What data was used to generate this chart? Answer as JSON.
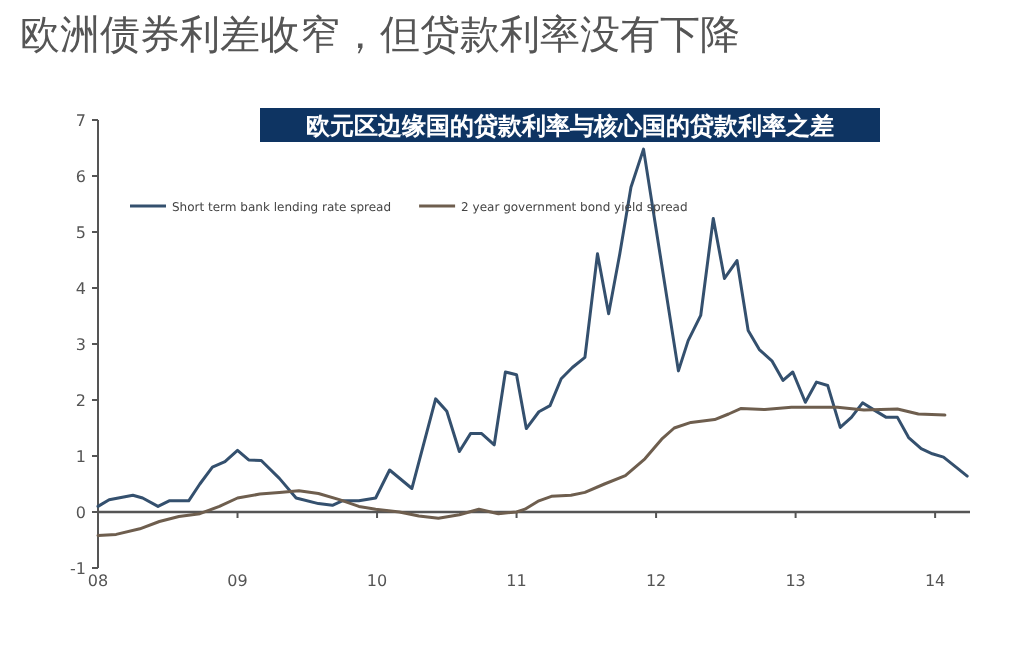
{
  "chart_data": {
    "type": "line",
    "title": "欧洲债券利差收窄，但贷款利率没有下降",
    "subtitle": "欧元区边缘国的贷款利率与核心国的贷款利率之差",
    "xlim": [
      2008,
      2014.25
    ],
    "xticks": [
      {
        "value": 2008,
        "label": "08"
      },
      {
        "value": 2009,
        "label": "09"
      },
      {
        "value": 2010,
        "label": "10"
      },
      {
        "value": 2011,
        "label": "11"
      },
      {
        "value": 2012,
        "label": "12"
      },
      {
        "value": 2013,
        "label": "13"
      },
      {
        "value": 2014,
        "label": "14"
      }
    ],
    "ylim": [
      -1,
      7
    ],
    "yticks": [
      -1,
      0,
      1,
      2,
      3,
      4,
      5,
      6,
      7
    ],
    "legend": "top left",
    "marker": "none",
    "line_style": "solid",
    "series": [
      {
        "name": "Short term bank lending rate spread",
        "color": "#34506e",
        "x": [
          2008.0,
          2008.08,
          2008.25,
          2008.32,
          2008.43,
          2008.51,
          2008.65,
          2008.73,
          2008.82,
          2008.91,
          2009.0,
          2009.08,
          2009.17,
          2009.3,
          2009.42,
          2009.58,
          2009.68,
          2009.75,
          2009.87,
          2009.99,
          2010.09,
          2010.25,
          2010.42,
          2010.5,
          2010.59,
          2010.67,
          2010.75,
          2010.84,
          2010.92,
          2011.0,
          2011.07,
          2011.16,
          2011.24,
          2011.32,
          2011.4,
          2011.49,
          2011.58,
          2011.66,
          2011.74,
          2011.82,
          2011.91,
          2012.16,
          2012.23,
          2012.32,
          2012.41,
          2012.49,
          2012.58,
          2012.66,
          2012.74,
          2012.83,
          2012.91,
          2012.98,
          2013.07,
          2013.15,
          2013.23,
          2013.32,
          2013.4,
          2013.48,
          2013.57,
          2013.65,
          2013.73,
          2013.81,
          2013.9,
          2013.98,
          2014.06,
          2014.15,
          2014.23
        ],
        "values": [
          0.1,
          0.22,
          0.3,
          0.25,
          0.1,
          0.2,
          0.2,
          0.5,
          0.8,
          0.9,
          1.1,
          0.93,
          0.92,
          0.6,
          0.25,
          0.15,
          0.12,
          0.2,
          0.2,
          0.25,
          0.75,
          0.42,
          2.02,
          1.8,
          1.08,
          1.4,
          1.4,
          1.2,
          2.5,
          2.45,
          1.49,
          1.79,
          1.9,
          2.38,
          2.58,
          2.76,
          4.61,
          3.54,
          4.61,
          5.8,
          6.48,
          2.52,
          3.06,
          3.51,
          5.24,
          4.17,
          4.49,
          3.24,
          2.9,
          2.7,
          2.35,
          2.5,
          1.96,
          2.32,
          2.26,
          1.51,
          1.69,
          1.95,
          1.81,
          1.69,
          1.69,
          1.33,
          1.13,
          1.04,
          0.98,
          0.8,
          0.64
        ]
      },
      {
        "name": "2 year government bond yield spread",
        "color": "#6e5e4e",
        "x": [
          2008.0,
          2008.13,
          2008.3,
          2008.44,
          2008.58,
          2008.73,
          2008.87,
          2009.0,
          2009.16,
          2009.3,
          2009.44,
          2009.58,
          2009.73,
          2009.87,
          2009.99,
          2010.16,
          2010.3,
          2010.44,
          2010.59,
          2010.73,
          2010.87,
          2011.0,
          2011.06,
          2011.16,
          2011.25,
          2011.39,
          2011.49,
          2011.63,
          2011.78,
          2011.92,
          2012.04,
          2012.13,
          2012.25,
          2012.42,
          2012.52,
          2012.61,
          2012.78,
          2012.97,
          2013.16,
          2013.3,
          2013.49,
          2013.73,
          2013.88,
          2014.07
        ],
        "values": [
          -0.42,
          -0.4,
          -0.3,
          -0.17,
          -0.08,
          -0.03,
          0.1,
          0.25,
          0.32,
          0.35,
          0.38,
          0.33,
          0.22,
          0.1,
          0.05,
          0.0,
          -0.07,
          -0.11,
          -0.05,
          0.05,
          -0.03,
          0.0,
          0.05,
          0.2,
          0.28,
          0.3,
          0.35,
          0.5,
          0.65,
          0.95,
          1.3,
          1.5,
          1.6,
          1.65,
          1.75,
          1.85,
          1.83,
          1.87,
          1.87,
          1.87,
          1.82,
          1.84,
          1.75,
          1.73
        ]
      }
    ]
  }
}
